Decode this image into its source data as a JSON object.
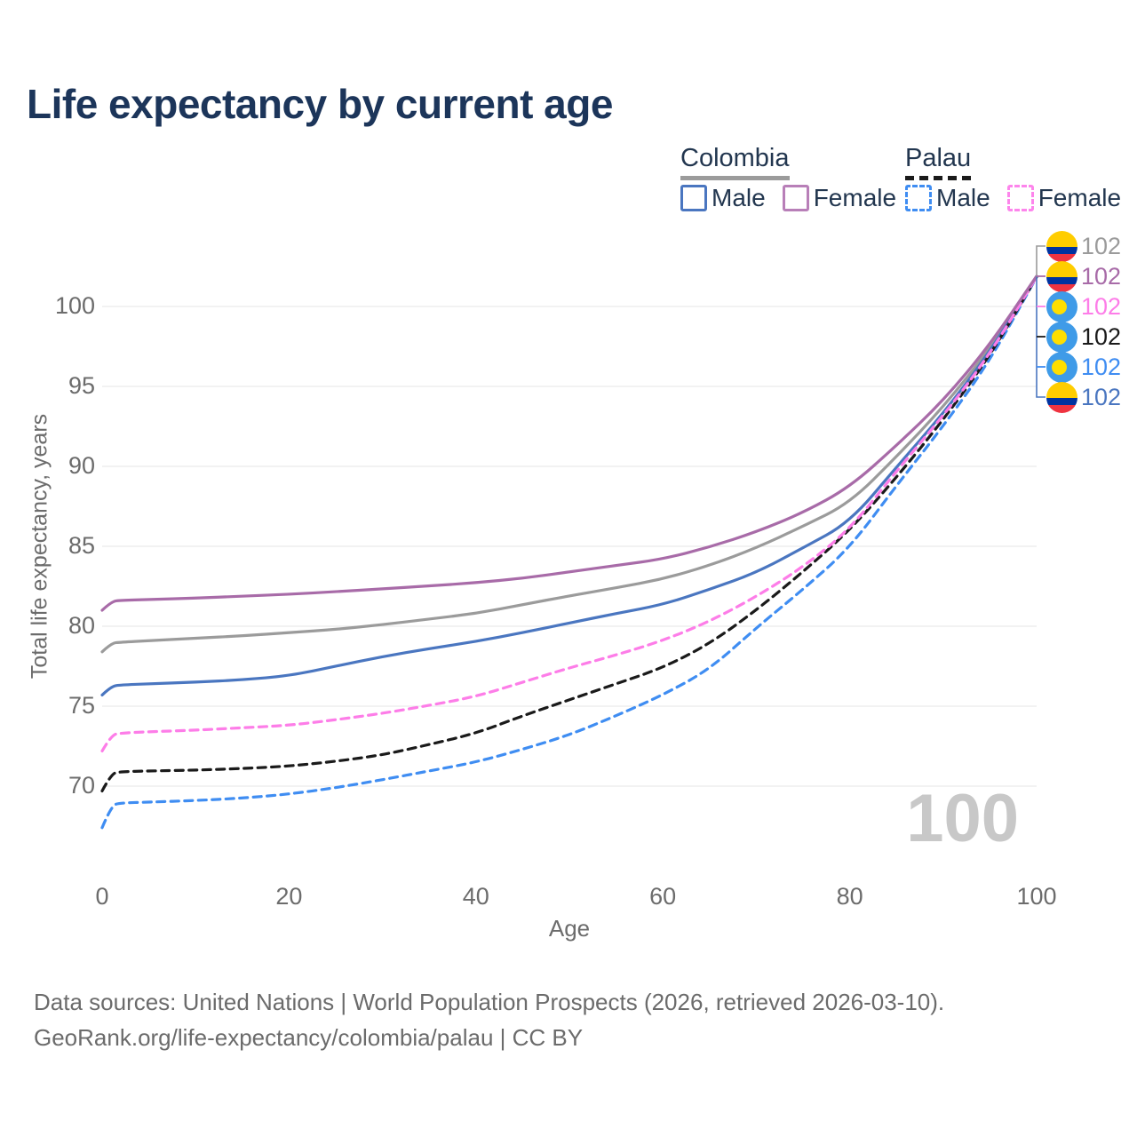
{
  "header": {
    "title": "Life expectancy by current age"
  },
  "legend": {
    "groups": [
      {
        "country": "Colombia",
        "line_style": "solid",
        "line_color": "#9b9b9b",
        "items": [
          {
            "label": "Male",
            "color": "#4a76c0",
            "dashed": false
          },
          {
            "label": "Female",
            "color": "#b87fb8",
            "dashed": false
          }
        ]
      },
      {
        "country": "Palau",
        "line_style": "dashed",
        "line_color": "#1a1a1a",
        "items": [
          {
            "label": "Male",
            "color": "#3f8df2",
            "dashed": true
          },
          {
            "label": "Female",
            "color": "#fd85ec",
            "dashed": true
          }
        ]
      }
    ]
  },
  "chart_data": {
    "type": "line",
    "title": "Life expectancy by current age",
    "xlabel": "Age",
    "ylabel": "Total life expectancy, years",
    "x_ticks": [
      0,
      20,
      40,
      60,
      80,
      100
    ],
    "y_ticks": [
      70,
      75,
      80,
      85,
      90,
      95,
      100
    ],
    "xlim": [
      0,
      100
    ],
    "ylim": [
      66,
      103
    ],
    "grid": "horizontal",
    "ages": [
      0,
      1,
      2,
      5,
      10,
      15,
      20,
      25,
      30,
      35,
      40,
      45,
      50,
      55,
      60,
      65,
      70,
      75,
      80,
      85,
      90,
      95,
      100
    ],
    "series": [
      {
        "name": "Colombia (both sexes)",
        "country": "Colombia",
        "sex": "both",
        "style": "solid",
        "color": "#9b9b9b",
        "end_label": "102",
        "values": [
          78.4,
          78.95,
          79.0,
          79.1,
          79.25,
          79.4,
          79.6,
          79.8,
          80.1,
          80.45,
          80.8,
          81.35,
          81.9,
          82.4,
          82.95,
          83.8,
          84.9,
          86.25,
          87.7,
          90.6,
          93.7,
          97.35,
          101.88
        ]
      },
      {
        "name": "Colombia Male",
        "country": "Colombia",
        "sex": "male",
        "style": "solid",
        "color": "#4a76c0",
        "end_label": "102",
        "values": [
          75.7,
          76.25,
          76.33,
          76.4,
          76.5,
          76.65,
          76.9,
          77.5,
          78.1,
          78.6,
          79.05,
          79.6,
          80.2,
          80.8,
          81.35,
          82.3,
          83.35,
          84.9,
          86.5,
          89.95,
          93.3,
          97.15,
          101.87
        ]
      },
      {
        "name": "Palau Male",
        "country": "Palau",
        "sex": "male",
        "style": "dashed",
        "color": "#3f8df2",
        "end_label": "102",
        "values": [
          67.4,
          68.8,
          68.95,
          69.0,
          69.1,
          69.25,
          69.5,
          69.9,
          70.4,
          70.95,
          71.5,
          72.3,
          73.2,
          74.4,
          75.7,
          77.3,
          79.9,
          82.3,
          84.9,
          88.8,
          92.5,
          96.6,
          101.84
        ]
      },
      {
        "name": "Palau (both sexes)",
        "country": "Palau",
        "sex": "both",
        "style": "dashed",
        "color": "#1a1a1a",
        "end_label": "102",
        "values": [
          69.7,
          70.8,
          70.9,
          70.95,
          71.0,
          71.1,
          71.25,
          71.55,
          71.95,
          72.6,
          73.3,
          74.4,
          75.4,
          76.4,
          77.4,
          78.9,
          81.0,
          83.4,
          86.0,
          89.3,
          92.9,
          96.9,
          101.85
        ]
      },
      {
        "name": "Palau Female",
        "country": "Palau",
        "sex": "female",
        "style": "dashed",
        "color": "#fd7de8",
        "end_label": "102",
        "values": [
          72.2,
          73.2,
          73.32,
          73.4,
          73.5,
          73.65,
          73.8,
          74.15,
          74.55,
          75.05,
          75.6,
          76.5,
          77.4,
          78.2,
          79.1,
          80.3,
          81.85,
          83.7,
          86.05,
          89.7,
          93.15,
          97.0,
          101.86
        ]
      },
      {
        "name": "Colombia Female",
        "country": "Colombia",
        "sex": "female",
        "style": "solid",
        "color": "#a86ba8",
        "end_label": "102",
        "values": [
          81.0,
          81.55,
          81.62,
          81.67,
          81.76,
          81.88,
          82.0,
          82.16,
          82.34,
          82.52,
          82.72,
          83.0,
          83.4,
          83.8,
          84.2,
          84.95,
          85.9,
          87.1,
          88.7,
          91.3,
          94.1,
          97.6,
          101.9
        ]
      }
    ],
    "end_labels": [
      {
        "flag": "colombia",
        "text": "102",
        "color": "#9b9b9b",
        "series": "Colombia (both sexes)"
      },
      {
        "flag": "colombia",
        "text": "102",
        "color": "#a86ba8",
        "series": "Colombia Female"
      },
      {
        "flag": "palau",
        "text": "102",
        "color": "#fd7de8",
        "series": "Palau Female"
      },
      {
        "flag": "palau",
        "text": "102",
        "color": "#1a1a1a",
        "series": "Palau (both sexes)"
      },
      {
        "flag": "palau",
        "text": "102",
        "color": "#3f8df2",
        "series": "Palau Male"
      },
      {
        "flag": "colombia",
        "text": "102",
        "color": "#4a76c0",
        "series": "Colombia Male"
      }
    ],
    "legend_position": "top-right"
  },
  "watermark": {
    "age_counter": "100"
  },
  "footer": {
    "line1": "Data sources: United Nations | World Population Prospects (2026, retrieved 2026-03-10).",
    "line2": "GeoRank.org/life-expectancy/colombia/palau | CC BY"
  }
}
